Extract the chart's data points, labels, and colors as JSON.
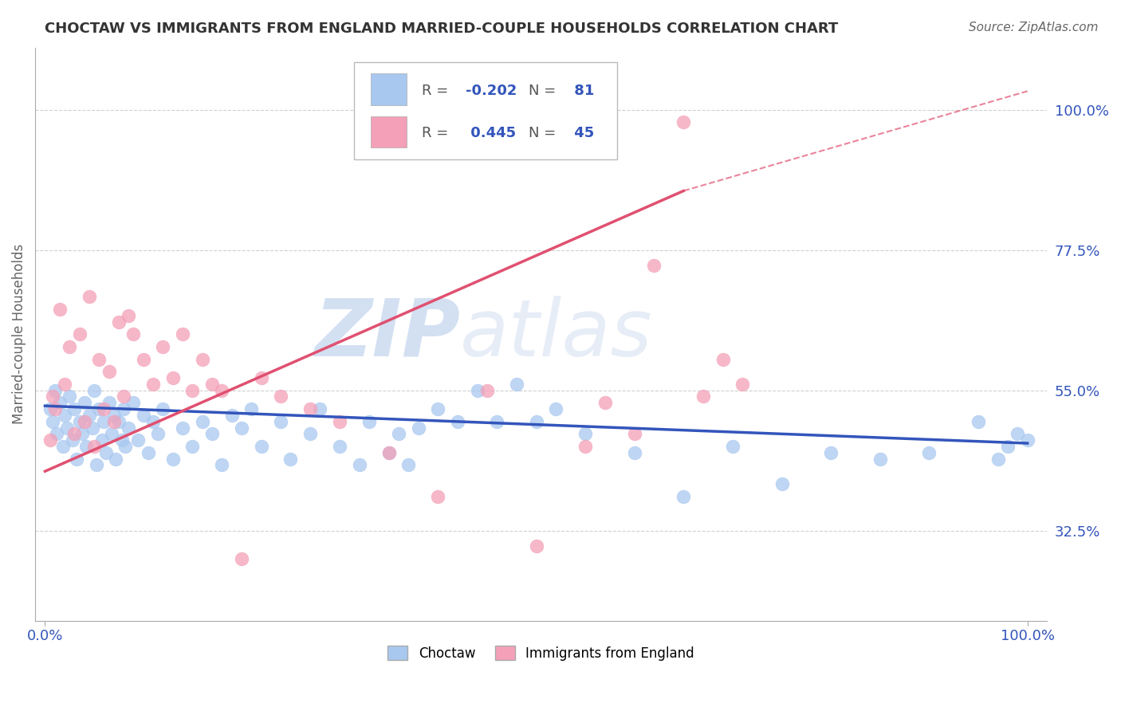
{
  "title": "CHOCTAW VS IMMIGRANTS FROM ENGLAND MARRIED-COUPLE HOUSEHOLDS CORRELATION CHART",
  "source": "Source: ZipAtlas.com",
  "ylabel": "Married-couple Households",
  "blue_R": -0.202,
  "blue_N": 81,
  "pink_R": 0.445,
  "pink_N": 45,
  "blue_color": "#A8C8F0",
  "pink_color": "#F4A0B8",
  "blue_line_color": "#3355BB",
  "pink_line_color": "#E05070",
  "blue_scatter_x": [
    0.5,
    0.8,
    1.0,
    1.2,
    1.5,
    1.8,
    2.0,
    2.2,
    2.5,
    2.8,
    3.0,
    3.2,
    3.5,
    3.8,
    4.0,
    4.2,
    4.5,
    4.8,
    5.0,
    5.2,
    5.5,
    5.8,
    6.0,
    6.2,
    6.5,
    6.8,
    7.0,
    7.2,
    7.5,
    7.8,
    8.0,
    8.2,
    8.5,
    9.0,
    9.5,
    10.0,
    10.5,
    11.0,
    11.5,
    12.0,
    13.0,
    14.0,
    15.0,
    16.0,
    17.0,
    18.0,
    19.0,
    20.0,
    21.0,
    22.0,
    24.0,
    25.0,
    27.0,
    28.0,
    30.0,
    32.0,
    33.0,
    35.0,
    36.0,
    37.0,
    38.0,
    40.0,
    42.0,
    44.0,
    46.0,
    48.0,
    50.0,
    52.0,
    55.0,
    60.0,
    65.0,
    70.0,
    75.0,
    80.0,
    85.0,
    90.0,
    95.0,
    97.0,
    98.0,
    99.0,
    100.0
  ],
  "blue_scatter_y": [
    52,
    50,
    55,
    48,
    53,
    46,
    51,
    49,
    54,
    47,
    52,
    44,
    50,
    48,
    53,
    46,
    51,
    49,
    55,
    43,
    52,
    47,
    50,
    45,
    53,
    48,
    51,
    44,
    50,
    47,
    52,
    46,
    49,
    53,
    47,
    51,
    45,
    50,
    48,
    52,
    44,
    49,
    46,
    50,
    48,
    43,
    51,
    49,
    52,
    46,
    50,
    44,
    48,
    52,
    46,
    43,
    50,
    45,
    48,
    43,
    49,
    52,
    50,
    55,
    50,
    56,
    50,
    52,
    48,
    45,
    38,
    46,
    40,
    45,
    44,
    45,
    50,
    44,
    46,
    48,
    47
  ],
  "pink_scatter_x": [
    0.5,
    0.8,
    1.0,
    1.5,
    2.0,
    2.5,
    3.0,
    3.5,
    4.0,
    4.5,
    5.0,
    5.5,
    6.0,
    6.5,
    7.0,
    7.5,
    8.0,
    8.5,
    9.0,
    10.0,
    11.0,
    12.0,
    13.0,
    14.0,
    15.0,
    16.0,
    17.0,
    18.0,
    20.0,
    22.0,
    24.0,
    27.0,
    30.0,
    35.0,
    40.0,
    45.0,
    50.0,
    55.0,
    57.0,
    60.0,
    62.0,
    65.0,
    67.0,
    69.0,
    71.0
  ],
  "pink_scatter_y": [
    47,
    54,
    52,
    68,
    56,
    62,
    48,
    64,
    50,
    70,
    46,
    60,
    52,
    58,
    50,
    66,
    54,
    67,
    64,
    60,
    56,
    62,
    57,
    64,
    55,
    60,
    56,
    55,
    28,
    57,
    54,
    52,
    50,
    45,
    38,
    55,
    30,
    46,
    53,
    48,
    75,
    98,
    54,
    60,
    56
  ],
  "blue_trend": [
    0,
    100,
    52.5,
    46.5
  ],
  "pink_solid_trend": [
    0,
    65,
    42.0,
    87.0
  ],
  "pink_dashed_trend": [
    65,
    100,
    87.0,
    103.0
  ],
  "ytick_positions": [
    32.5,
    55.0,
    77.5,
    100.0
  ],
  "ytick_labels": [
    "32.5%",
    "55.0%",
    "77.5%",
    "100.0%"
  ],
  "ylim": [
    18,
    110
  ],
  "watermark_zip": "ZIP",
  "watermark_atlas": "atlas",
  "background_color": "#ffffff",
  "grid_color": "#d0d0d0",
  "legend_labels": [
    "Choctaw",
    "Immigrants from England"
  ]
}
